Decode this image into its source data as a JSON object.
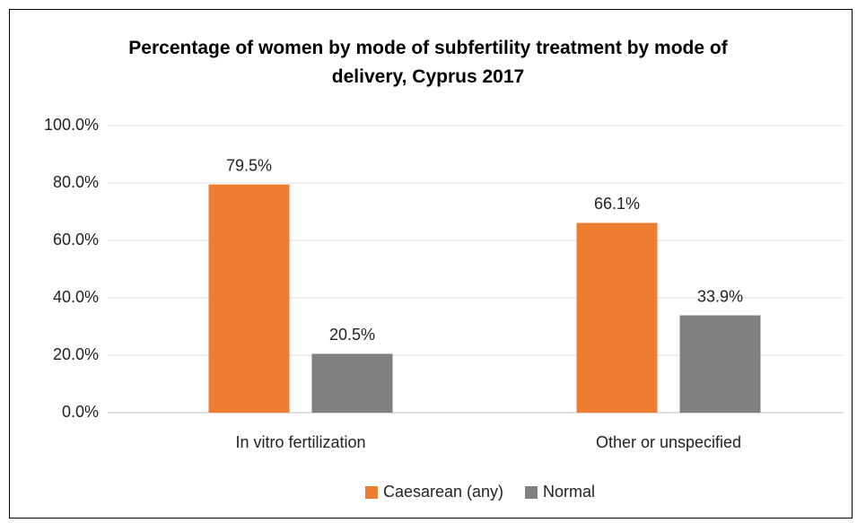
{
  "chart_data": {
    "type": "bar",
    "title": "Percentage of women by mode of subfertility treatment by mode of delivery, Cyprus 2017",
    "categories": [
      "In vitro fertilization",
      "Other or unspecified"
    ],
    "series": [
      {
        "name": "Caesarean (any)",
        "color": "#ed7d31",
        "values": [
          79.5,
          66.1
        ],
        "value_labels": [
          "79.5%",
          "66.1%"
        ]
      },
      {
        "name": "Normal",
        "color": "#808080",
        "values": [
          20.5,
          33.9
        ],
        "value_labels": [
          "20.5%",
          "33.9%"
        ]
      }
    ],
    "ylim": [
      0,
      100
    ],
    "yticks": [
      {
        "value": 0,
        "label": "0.0%"
      },
      {
        "value": 20,
        "label": "20.0%"
      },
      {
        "value": 40,
        "label": "40.0%"
      },
      {
        "value": 60,
        "label": "60.0%"
      },
      {
        "value": 80,
        "label": "80.0%"
      },
      {
        "value": 100,
        "label": "100.0%"
      }
    ],
    "grid": true,
    "legend": "bottom"
  }
}
